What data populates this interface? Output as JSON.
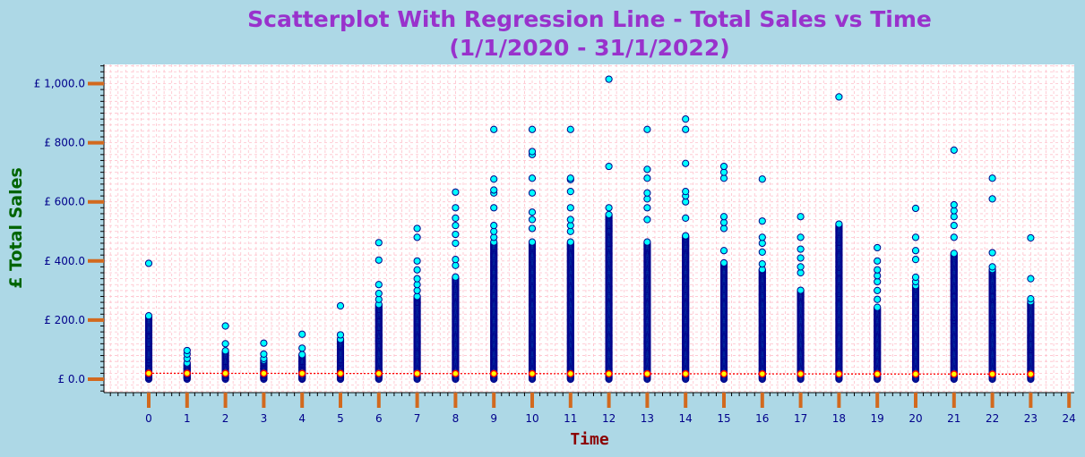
{
  "chart_data": {
    "type": "scatter",
    "title": "Scatterplot With Regression Line - Total Sales vs Time",
    "subtitle": "(1/1/2020 - 31/1/2022)",
    "xlabel": "Time",
    "ylabel": "£ Total Sales",
    "xlim": [
      -1,
      24
    ],
    "ylim": [
      -50,
      1060
    ],
    "x_ticks": [
      0,
      1,
      2,
      3,
      4,
      5,
      6,
      7,
      8,
      9,
      10,
      11,
      12,
      13,
      14,
      15,
      16,
      17,
      18,
      19,
      20,
      21,
      22,
      23,
      24
    ],
    "y_ticks": [
      0,
      200,
      400,
      600,
      800,
      1000
    ],
    "y_tick_labels": [
      "£ 0.0",
      "£ 200.0",
      "£ 400.0",
      "£ 600.0",
      "£ 800.0",
      "£ 1,000.0"
    ],
    "grid": true,
    "colors": {
      "background": "#add8e6",
      "plot_background": "#ffffff",
      "grid": "#ffc0cb",
      "point_fill": "#00ffff",
      "point_edge": "#00008b",
      "regression_line": "#ff0000",
      "mean_marker_fill": "#ffff00",
      "mean_marker_edge": "#ff0000",
      "tick_marks": "#d2691e"
    },
    "regression": {
      "x_start": 0,
      "y_start": 20,
      "x_end": 23,
      "y_end": 17
    },
    "series": [
      {
        "x": 0,
        "max": 392,
        "outliers": [
          392,
          165,
          150,
          120,
          75,
          65,
          55,
          45,
          35,
          25,
          15,
          5
        ]
      },
      {
        "x": 1,
        "max": 97,
        "outliers": [
          97,
          85,
          70,
          55,
          45,
          35,
          25,
          15,
          5
        ]
      },
      {
        "x": 2,
        "max": 180,
        "outliers": [
          180,
          120,
          80,
          60,
          45,
          35,
          25,
          15,
          5
        ]
      },
      {
        "x": 3,
        "max": 122,
        "outliers": [
          122,
          85,
          70,
          55,
          45,
          35,
          25,
          15,
          5
        ]
      },
      {
        "x": 4,
        "max": 152,
        "outliers": [
          152,
          105,
          60,
          50,
          40,
          30,
          20,
          10,
          2
        ]
      },
      {
        "x": 5,
        "max": 248,
        "outliers": [
          248,
          150,
          135,
          110,
          65,
          55,
          45,
          35,
          25,
          15,
          5
        ]
      },
      {
        "x": 6,
        "max": 462,
        "outliers": [
          462,
          403,
          320,
          290,
          270,
          235,
          215,
          175,
          150,
          130
        ]
      },
      {
        "x": 7,
        "max": 510,
        "outliers": [
          510,
          480,
          400,
          370,
          340,
          320,
          300,
          280,
          260
        ]
      },
      {
        "x": 8,
        "max": 633,
        "outliers": [
          633,
          580,
          545,
          520,
          490,
          460,
          405,
          385
        ]
      },
      {
        "x": 9,
        "max": 845,
        "outliers": [
          845,
          677,
          640,
          630,
          580,
          520,
          500,
          480
        ]
      },
      {
        "x": 10,
        "max": 845,
        "outliers": [
          845,
          770,
          760,
          680,
          630,
          565,
          540,
          510
        ]
      },
      {
        "x": 11,
        "max": 845,
        "outliers": [
          845,
          680,
          675,
          635,
          580,
          540,
          520,
          500
        ]
      },
      {
        "x": 12,
        "max": 1015,
        "outliers": [
          1015,
          720,
          580,
          520,
          500,
          480,
          460
        ]
      },
      {
        "x": 13,
        "max": 845,
        "outliers": [
          845,
          710,
          680,
          630,
          610,
          580,
          540
        ]
      },
      {
        "x": 14,
        "max": 880,
        "outliers": [
          880,
          845,
          730,
          635,
          620,
          600,
          545,
          485
        ]
      },
      {
        "x": 15,
        "max": 720,
        "outliers": [
          720,
          700,
          680,
          550,
          530,
          510,
          435,
          390
        ]
      },
      {
        "x": 16,
        "max": 677,
        "outliers": [
          677,
          535,
          480,
          460,
          430,
          390,
          370
        ]
      },
      {
        "x": 17,
        "max": 550,
        "outliers": [
          550,
          480,
          440,
          410,
          380,
          360
        ]
      },
      {
        "x": 18,
        "max": 955,
        "outliers": [
          955,
          462,
          400,
          380,
          360,
          320,
          290
        ]
      },
      {
        "x": 19,
        "max": 445,
        "outliers": [
          445,
          400,
          370,
          350,
          330,
          300,
          270
        ]
      },
      {
        "x": 20,
        "max": 578,
        "outliers": [
          578,
          480,
          435,
          405,
          345,
          330,
          240,
          225,
          210
        ]
      },
      {
        "x": 21,
        "max": 775,
        "outliers": [
          775,
          590,
          570,
          550,
          520,
          480,
          400,
          300,
          210,
          200
        ]
      },
      {
        "x": 22,
        "max": 680,
        "outliers": [
          680,
          610,
          428,
          380,
          300,
          270,
          210,
          200
        ]
      },
      {
        "x": 23,
        "max": 478,
        "outliers": [
          478,
          340,
          272,
          160,
          140,
          100,
          80
        ]
      }
    ]
  }
}
